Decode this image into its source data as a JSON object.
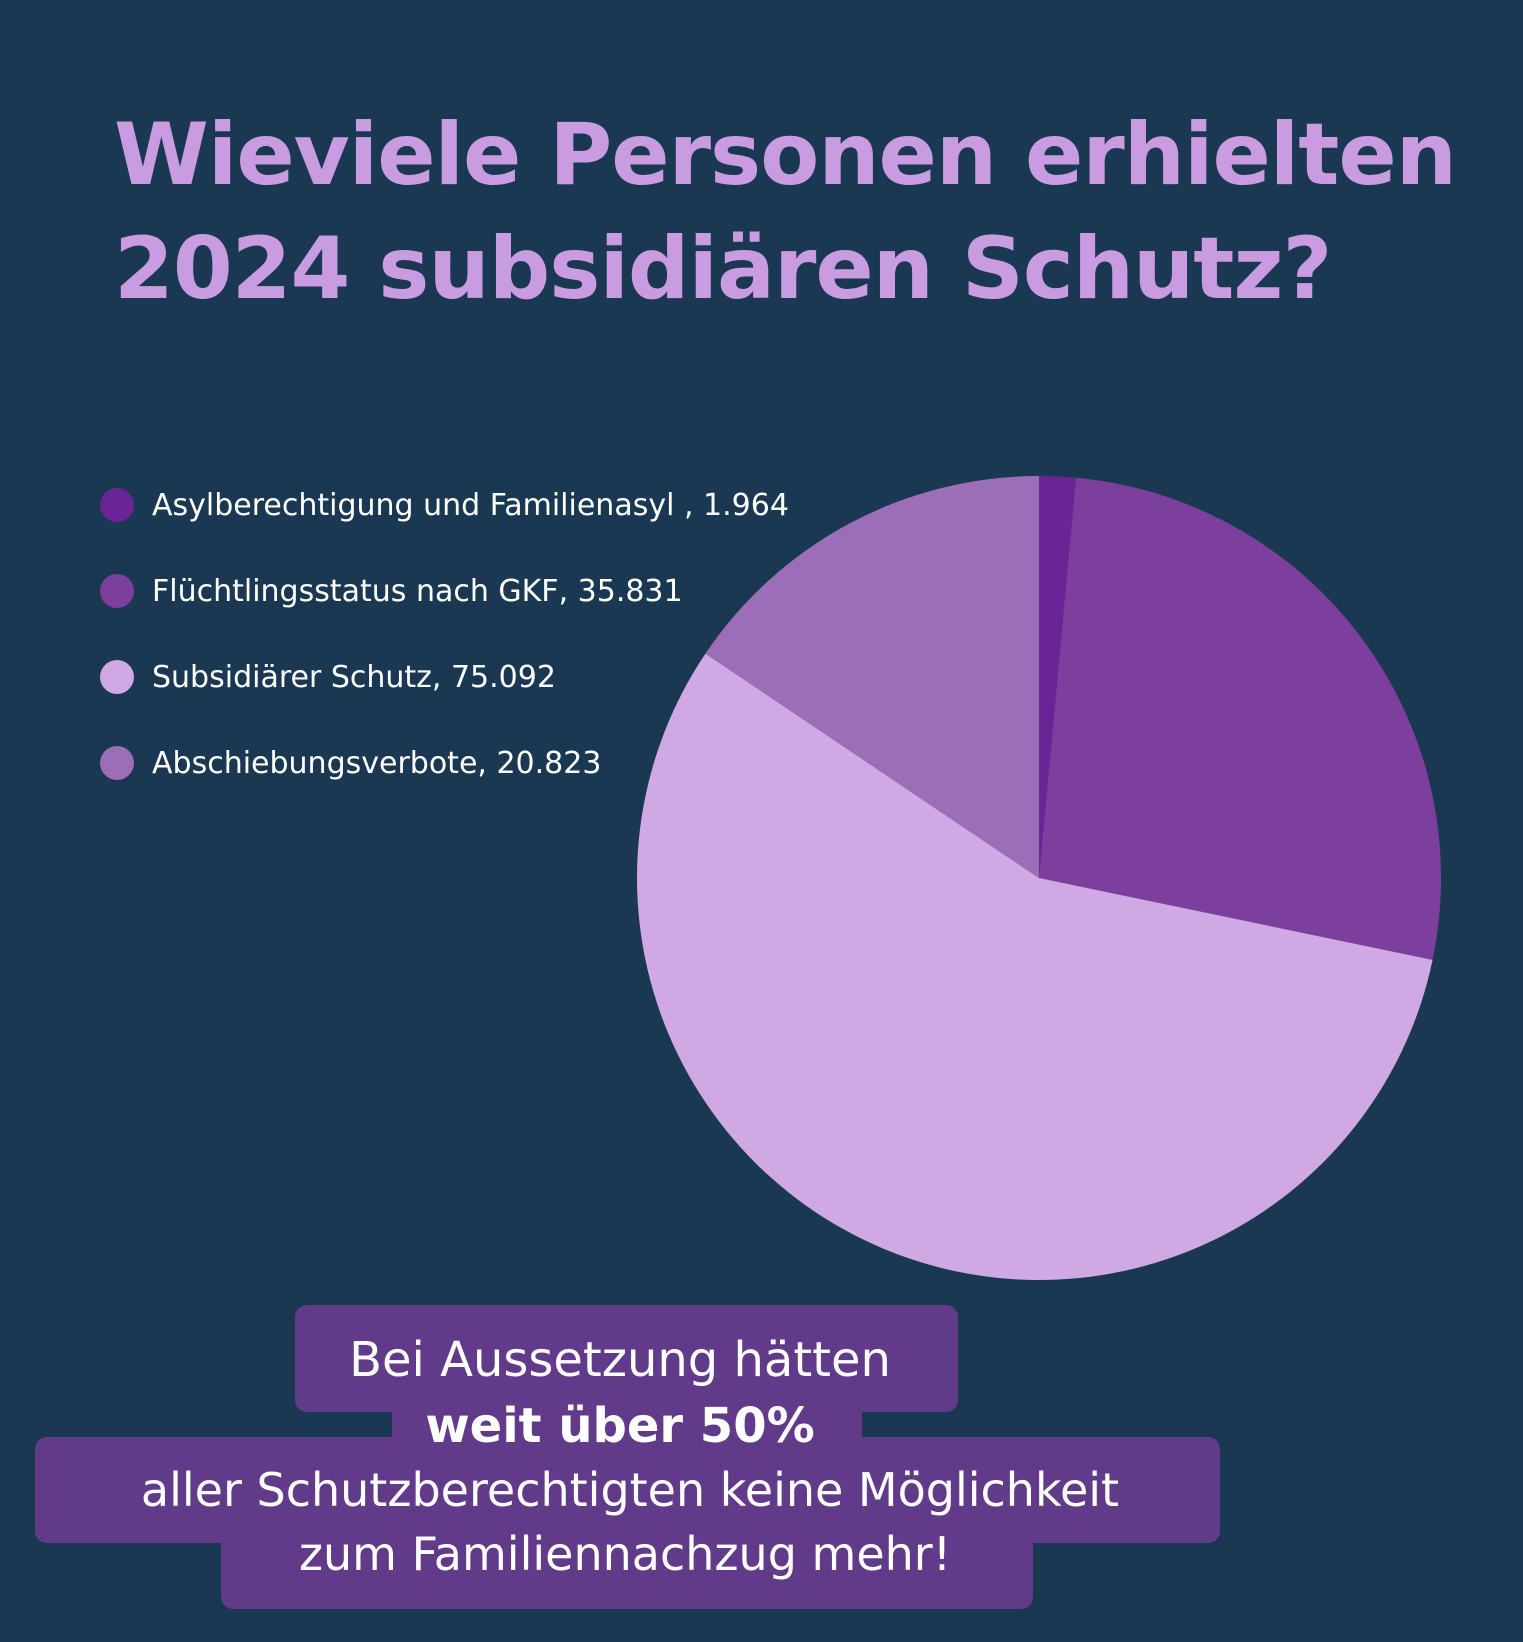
{
  "title": {
    "line1": "Wieviele Personen erhielten",
    "line2": "2024 subsidiären Schutz?"
  },
  "legend": [
    {
      "label": "Asylberechtigung und Familienasyl , 1.964",
      "color": "#6b2496"
    },
    {
      "label": "Flüchtlingsstatus nach GKF, 35.831",
      "color": "#7d3f9e"
    },
    {
      "label": "Subsidiärer Schutz, 75.092",
      "color": "#d0a9e4"
    },
    {
      "label": "Abschiebungsverbote, 20.823",
      "color": "#9d6eb8"
    }
  ],
  "chart_data": {
    "type": "pie",
    "categories": [
      "Asylberechtigung und Familienasyl",
      "Flüchtlingsstatus nach GKF",
      "Subsidiärer Schutz",
      "Abschiebungsverbote"
    ],
    "values": [
      1964,
      35831,
      75092,
      20823
    ],
    "colors": [
      "#6b2496",
      "#7d3f9e",
      "#d0a9e4",
      "#9d6eb8"
    ],
    "start": "top",
    "direction": "clockwise",
    "legend_position": "top-left"
  },
  "callout": {
    "line1": "Bei Aussetzung hätten",
    "line2": "weit  über 50%",
    "line3": "aller Schutzberechtigten keine Möglichkeit",
    "line4": "zum Familiennachzug mehr!"
  },
  "colors": {
    "background": "#1b3852",
    "title": "#c99be0",
    "callout_background": "#613a8a"
  }
}
